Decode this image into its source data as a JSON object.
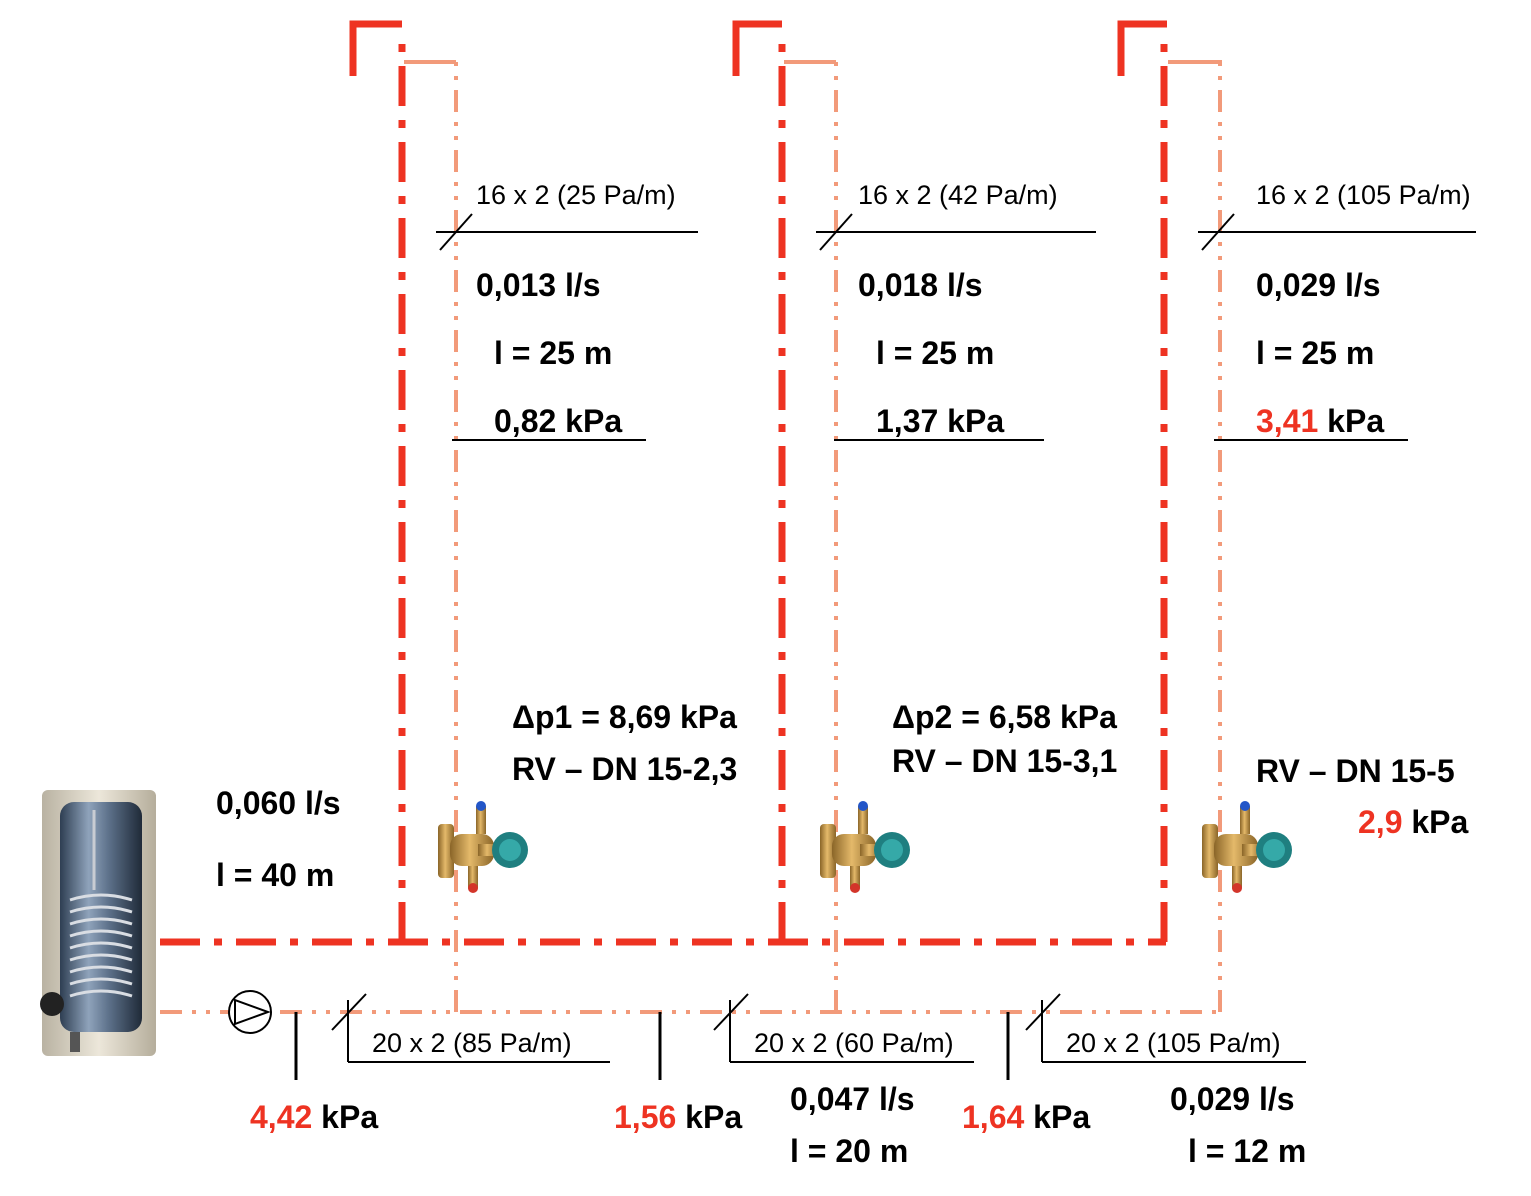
{
  "colors": {
    "supply_pipe": "#ee3322",
    "return_pipe": "#f29a7a",
    "highlight_value": "#ee3322",
    "text": "#000000"
  },
  "icons": {
    "tank": "water-heater-tank-icon",
    "pump": "circulation-pump-icon",
    "valve": "balancing-valve-icon"
  },
  "risers": [
    {
      "pipe_spec": "16 x 2 (25 Pa/m)",
      "flow": "0,013 l/s",
      "length": "l = 25 m",
      "pressure_value": "0,82",
      "pressure_unit": "kPa",
      "pressure_highlight": false,
      "dp_label": "Δp1 = 8,69 kPa",
      "valve_label": "RV – DN 15-2,3"
    },
    {
      "pipe_spec": "16 x 2 (42 Pa/m)",
      "flow": "0,018 l/s",
      "length": "l = 25 m",
      "pressure_value": "1,37",
      "pressure_unit": "kPa",
      "pressure_highlight": false,
      "dp_label": "Δp2 = 6,58 kPa",
      "valve_label": "RV – DN 15-3,1"
    },
    {
      "pipe_spec": "16 x 2 (105 Pa/m)",
      "flow": "0,029 l/s",
      "length": "l = 25 m",
      "pressure_value": "3,41",
      "pressure_unit": "kPa",
      "pressure_highlight": true,
      "valve_label": "RV – DN 15-5",
      "valve_dp_value": "2,9",
      "valve_dp_unit": "kPa"
    }
  ],
  "main_line": {
    "flow": "0,060 l/s",
    "length": "l = 40 m"
  },
  "return_segments": [
    {
      "pipe_spec": "20 x 2 (85 Pa/m)"
    },
    {
      "pipe_spec": "20 x 2 (60 Pa/m)",
      "flow": "0,047 l/s",
      "length": "l = 20 m"
    },
    {
      "pipe_spec": "20 x 2 (105 Pa/m)",
      "flow": "0,029 l/s",
      "length": "l = 12 m"
    }
  ],
  "node_pressures": [
    {
      "value": "4,42",
      "unit": "kPa"
    },
    {
      "value": "1,56",
      "unit": "kPa"
    },
    {
      "value": "1,64",
      "unit": "kPa"
    }
  ]
}
